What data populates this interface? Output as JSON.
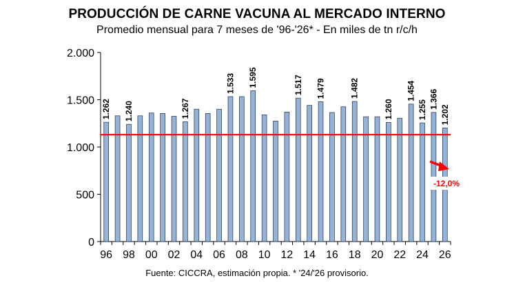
{
  "chart_data": {
    "type": "bar",
    "title": "PRODUCCIÓN DE CARNE VACUNA AL MERCADO INTERNO",
    "subtitle": "Promedio mensual para 7 meses de '96-'26* - En miles de tn r/c/h",
    "source": "Fuente: CICCRA, estimación propia. * '24/'26 provisorio.",
    "categories": [
      "1996",
      "1997",
      "1998",
      "1999",
      "2000",
      "2001",
      "2002",
      "2003",
      "2004",
      "2005",
      "2006",
      "2007",
      "2008",
      "2009",
      "2010",
      "2011",
      "2012",
      "2013",
      "2014",
      "2015",
      "2016",
      "2017",
      "2018",
      "2019",
      "2020",
      "2021",
      "2022",
      "2023",
      "2024",
      "2025",
      "2026"
    ],
    "x_tick_labels": [
      "96",
      "",
      "98",
      "",
      "00",
      "",
      "02",
      "",
      "04",
      "",
      "06",
      "",
      "08",
      "",
      "10",
      "",
      "12",
      "",
      "14",
      "",
      "16",
      "",
      "18",
      "",
      "20",
      "",
      "22",
      "",
      "24",
      "",
      "26"
    ],
    "values": [
      1262,
      1330,
      1240,
      1330,
      1360,
      1355,
      1325,
      1267,
      1400,
      1355,
      1400,
      1533,
      1533,
      1595,
      1340,
      1275,
      1370,
      1517,
      1440,
      1479,
      1365,
      1425,
      1482,
      1320,
      1320,
      1260,
      1305,
      1454,
      1255,
      1366,
      1202
    ],
    "data_labels": [
      "1.262",
      "",
      "1.240",
      "",
      "",
      "",
      "",
      "1.267",
      "",
      "",
      "",
      "1.533",
      "",
      "1.595",
      "",
      "",
      "",
      "1.517",
      "",
      "1.479",
      "",
      "",
      "1.482",
      "",
      "",
      "1.260",
      "",
      "1.454",
      "1.255",
      "1.366",
      "1.202"
    ],
    "y_tick_labels": [
      "0",
      "500",
      "1.000",
      "1.500",
      "2.000"
    ],
    "ylim": [
      0,
      2000
    ],
    "y_ticks": [
      0,
      500,
      1000,
      1500,
      2000
    ],
    "reference_line": 1130,
    "annotation": "-12,0%",
    "colors": {
      "bar_fill": "#95b3d7",
      "bar_stroke": "#1f2f4a",
      "reference_line": "#ff0000",
      "annotation": "#ff0000",
      "axis": "#000000"
    },
    "xlabel": "",
    "ylabel": "",
    "grid": false,
    "legend": "none"
  }
}
